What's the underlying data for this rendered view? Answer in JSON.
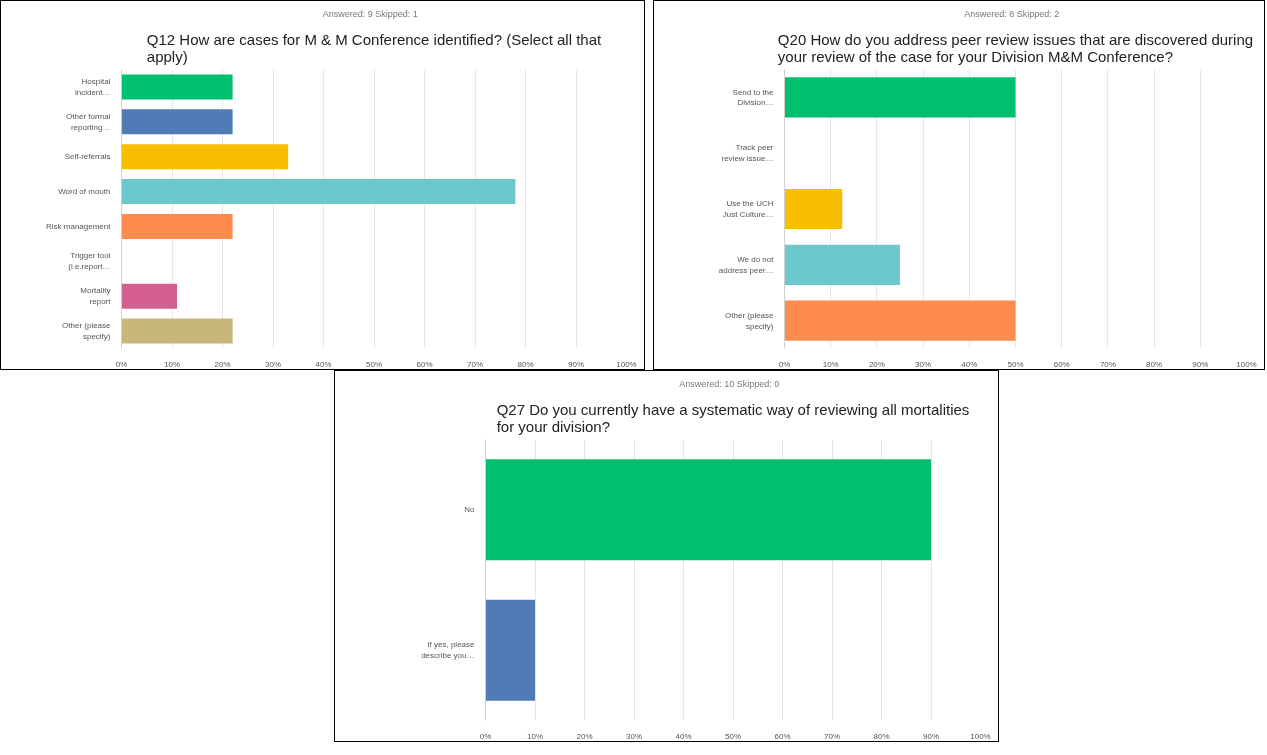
{
  "chart_data": [
    {
      "type": "bar",
      "orientation": "horizontal",
      "title": "Q12 How are cases for M & M Conference identified? (Select all that apply)",
      "subtitle": "Answered: 9    Skipped: 1",
      "categories": [
        "Hospital incident…",
        "Other formal reporting…",
        "Self-referrals",
        "Word of mouth",
        "Risk management",
        "Trigger tool (i.e.report…",
        "Mortality report",
        "Other (please specify)"
      ],
      "values": [
        22,
        22,
        33,
        78,
        22,
        0,
        11,
        22
      ],
      "colors": [
        "#00bf6f",
        "#507cb6",
        "#f9be00",
        "#6bc8cd",
        "#ff8b4f",
        "#7d7d7d",
        "#d25f90",
        "#c7b879"
      ],
      "xlim": [
        0,
        100
      ],
      "xticks": [
        {
          "value": 0,
          "label": "0%"
        },
        {
          "value": 10,
          "label": "10%"
        },
        {
          "value": 20,
          "label": "20%"
        },
        {
          "value": 30,
          "label": "30%"
        },
        {
          "value": 40,
          "label": "40%"
        },
        {
          "value": 50,
          "label": "50%"
        },
        {
          "value": 60,
          "label": "60%"
        },
        {
          "value": 70,
          "label": "70%"
        },
        {
          "value": 80,
          "label": "80%"
        },
        {
          "value": 90,
          "label": "90%"
        },
        {
          "value": 100,
          "label": "100%"
        }
      ],
      "grid": "x"
    },
    {
      "type": "bar",
      "orientation": "horizontal",
      "title": "Q20 How do you address peer review issues that are discovered during your review of the case for your Division M&M Conference?",
      "subtitle": "Answered: 8    Skipped: 2",
      "categories": [
        "Send to the Division…",
        "Track peer review issue…",
        "Use the UCH Just Culture…",
        "We do not address peer…",
        "Other (please specify)"
      ],
      "values": [
        50,
        0,
        12.5,
        25,
        50
      ],
      "colors": [
        "#00bf6f",
        "#507cb6",
        "#f9be00",
        "#6bc8cd",
        "#ff8b4f"
      ],
      "xlim": [
        0,
        100
      ],
      "xticks": [
        {
          "value": 0,
          "label": "0%"
        },
        {
          "value": 10,
          "label": "10%"
        },
        {
          "value": 20,
          "label": "20%"
        },
        {
          "value": 30,
          "label": "30%"
        },
        {
          "value": 40,
          "label": "40%"
        },
        {
          "value": 50,
          "label": "50%"
        },
        {
          "value": 60,
          "label": "60%"
        },
        {
          "value": 70,
          "label": "70%"
        },
        {
          "value": 80,
          "label": "80%"
        },
        {
          "value": 90,
          "label": "90%"
        },
        {
          "value": 100,
          "label": "100%"
        }
      ],
      "grid": "x"
    },
    {
      "type": "bar",
      "orientation": "horizontal",
      "title": "Q27 Do you currently have a systematic way of reviewing all mortalities for your division?",
      "subtitle": "Answered: 10    Skipped: 0",
      "categories": [
        "No",
        "If yes, please describe you…"
      ],
      "values": [
        90,
        10
      ],
      "colors": [
        "#00bf6f",
        "#507cb6"
      ],
      "xlim": [
        0,
        100
      ],
      "xticks": [
        {
          "value": 0,
          "label": "0%"
        },
        {
          "value": 10,
          "label": "10%"
        },
        {
          "value": 20,
          "label": "20%"
        },
        {
          "value": 30,
          "label": "30%"
        },
        {
          "value": 40,
          "label": "40%"
        },
        {
          "value": 50,
          "label": "50%"
        },
        {
          "value": 60,
          "label": "60%"
        },
        {
          "value": 70,
          "label": "70%"
        },
        {
          "value": 80,
          "label": "80%"
        },
        {
          "value": 90,
          "label": "90%"
        },
        {
          "value": 100,
          "label": "100%"
        }
      ],
      "grid": "x"
    }
  ]
}
